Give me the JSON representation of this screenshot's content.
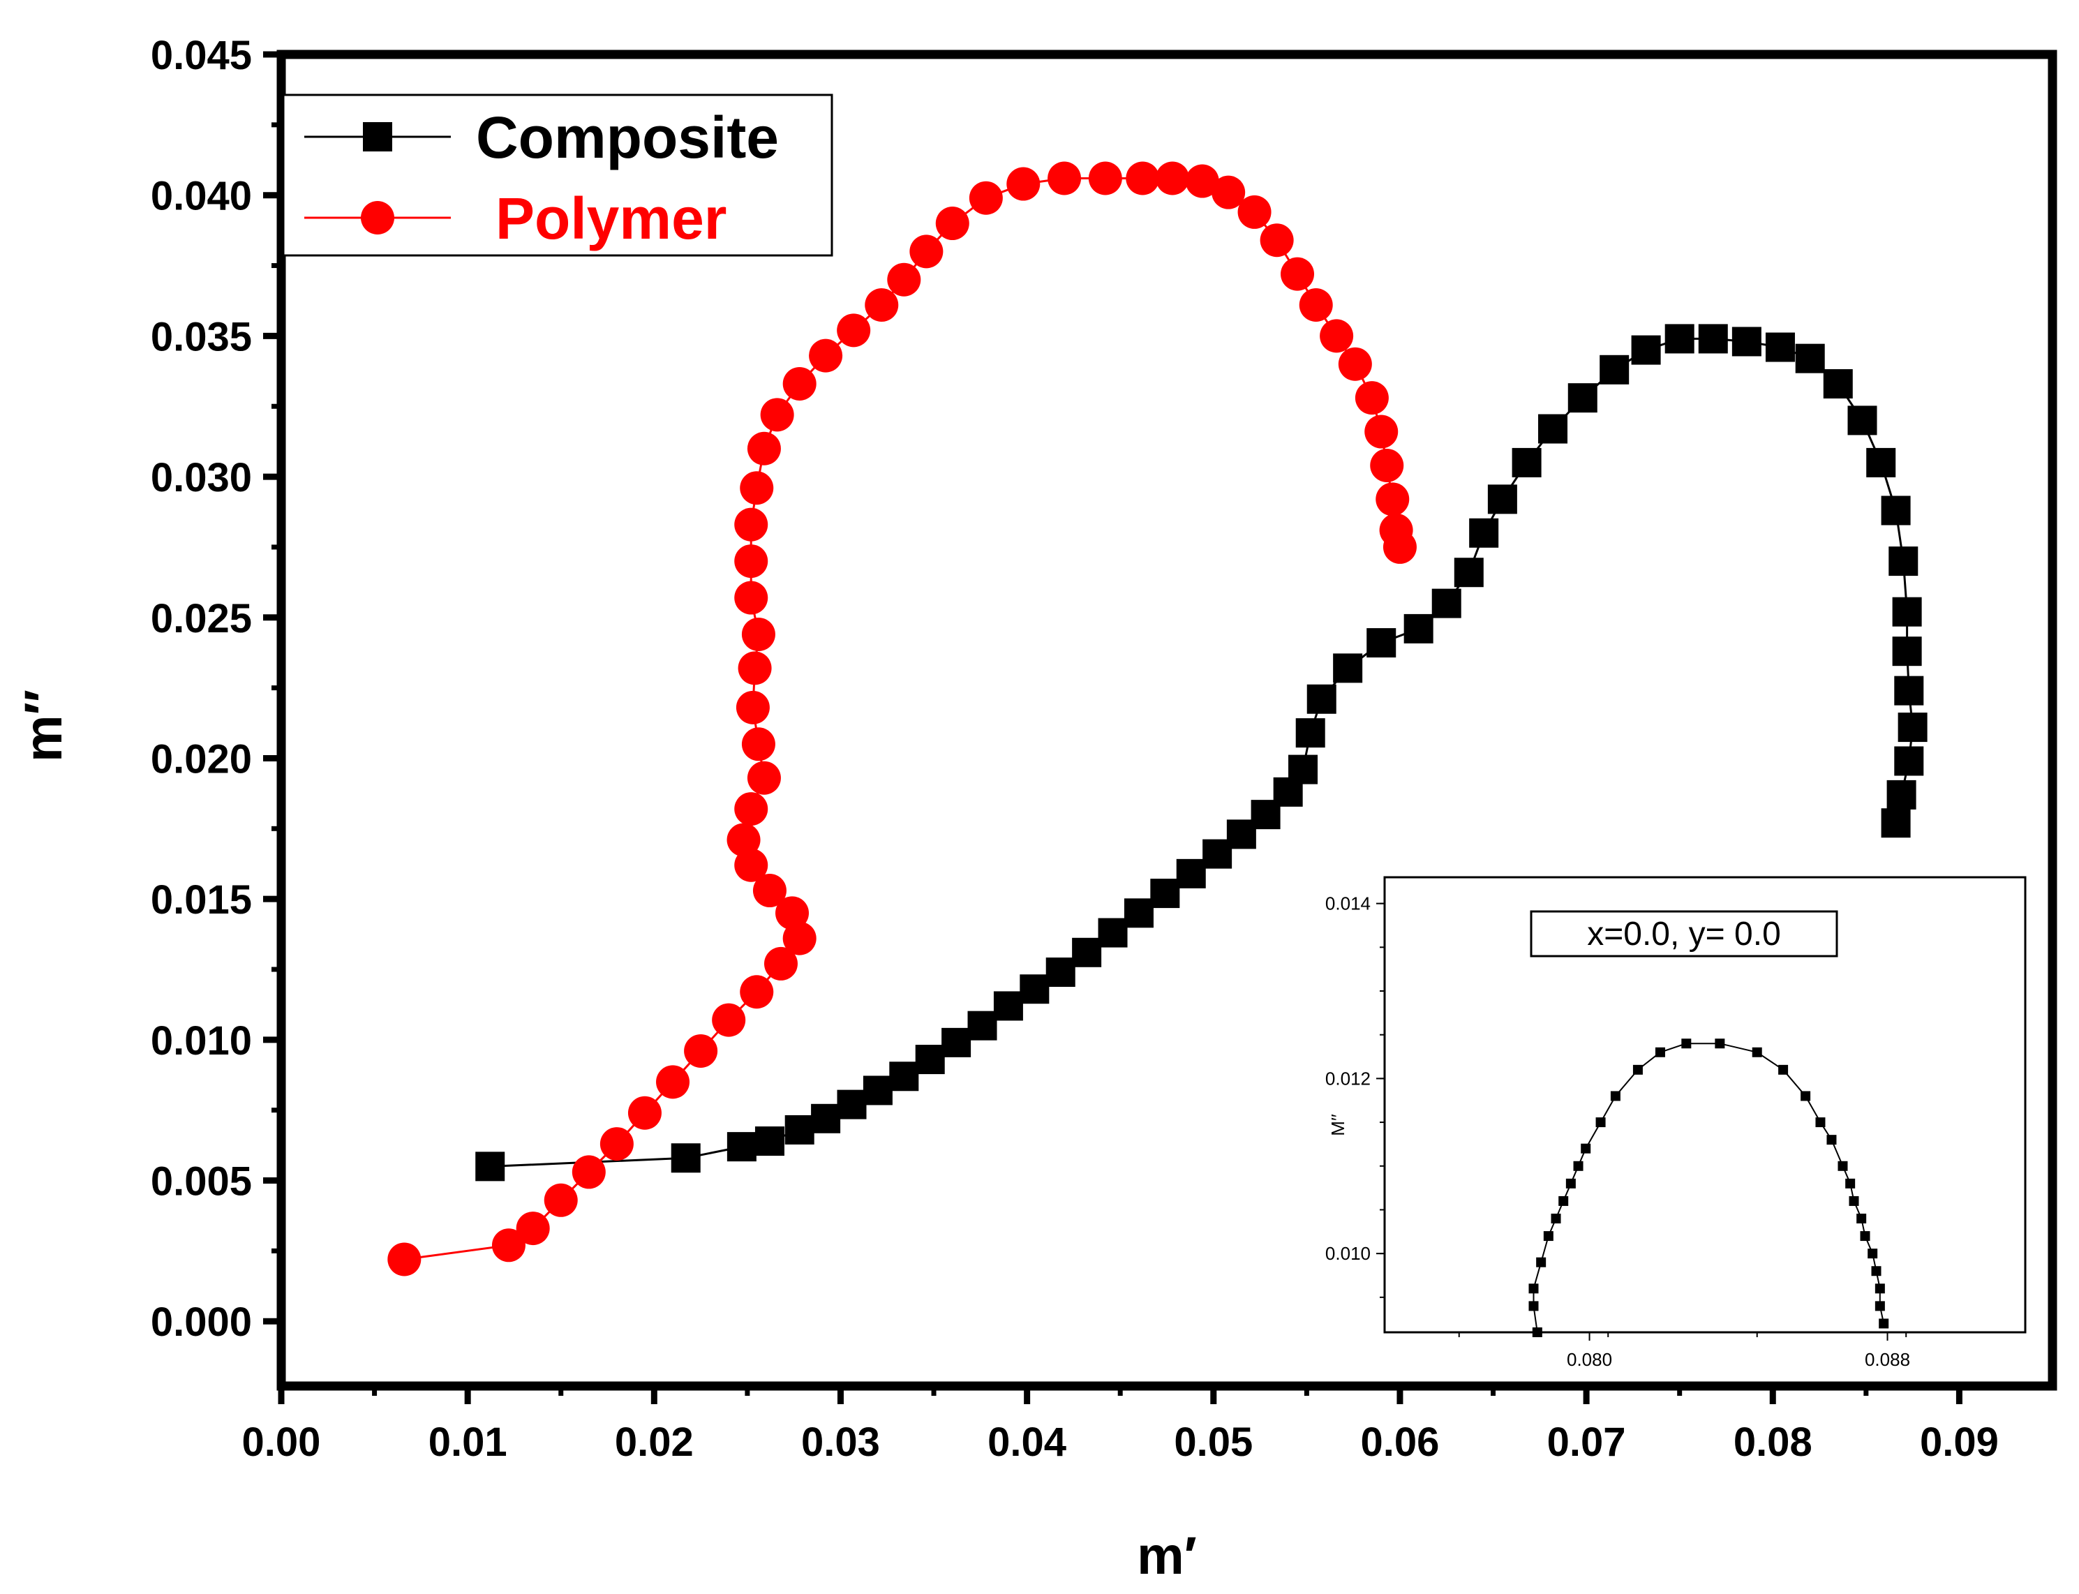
{
  "chart_data": [
    {
      "id": "main",
      "type": "line",
      "title": "",
      "xlabel": "m′",
      "ylabel": "m′′",
      "xlim": [
        0.0,
        0.095
      ],
      "ylim": [
        -0.0023,
        0.045
      ],
      "xticks": [
        0.0,
        0.01,
        0.02,
        0.03,
        0.04,
        0.05,
        0.06,
        0.07,
        0.08,
        0.09
      ],
      "xtick_labels": [
        "0.00",
        "0.01",
        "0.02",
        "0.03",
        "0.04",
        "0.05",
        "0.06",
        "0.07",
        "0.08",
        "0.09"
      ],
      "yticks": [
        0.0,
        0.005,
        0.01,
        0.015,
        0.02,
        0.025,
        0.03,
        0.035,
        0.04,
        0.045
      ],
      "ytick_labels": [
        "0.000",
        "0.005",
        "0.010",
        "0.015",
        "0.020",
        "0.025",
        "0.030",
        "0.035",
        "0.040",
        "0.045"
      ],
      "legend_position": "top-left",
      "series": [
        {
          "name": "Composite",
          "color": "#000000",
          "marker": "square",
          "points": [
            [
              0.0112,
              0.0055
            ],
            [
              0.0217,
              0.0058
            ],
            [
              0.0247,
              0.0062
            ],
            [
              0.0262,
              0.0064
            ],
            [
              0.0278,
              0.0068
            ],
            [
              0.0292,
              0.0072
            ],
            [
              0.0306,
              0.0077
            ],
            [
              0.032,
              0.0082
            ],
            [
              0.0334,
              0.0087
            ],
            [
              0.0348,
              0.0093
            ],
            [
              0.0362,
              0.0099
            ],
            [
              0.0376,
              0.0105
            ],
            [
              0.039,
              0.0112
            ],
            [
              0.0404,
              0.0118
            ],
            [
              0.0418,
              0.0124
            ],
            [
              0.0432,
              0.0131
            ],
            [
              0.0446,
              0.0138
            ],
            [
              0.046,
              0.0145
            ],
            [
              0.0474,
              0.0152
            ],
            [
              0.0488,
              0.0159
            ],
            [
              0.0502,
              0.0166
            ],
            [
              0.0515,
              0.0173
            ],
            [
              0.0528,
              0.018
            ],
            [
              0.054,
              0.0188
            ],
            [
              0.0548,
              0.0196
            ],
            [
              0.0552,
              0.0209
            ],
            [
              0.0558,
              0.0221
            ],
            [
              0.0572,
              0.0232
            ],
            [
              0.059,
              0.0241
            ],
            [
              0.061,
              0.0246
            ],
            [
              0.0625,
              0.0255
            ],
            [
              0.0637,
              0.0266
            ],
            [
              0.0645,
              0.028
            ],
            [
              0.0655,
              0.0292
            ],
            [
              0.0668,
              0.0305
            ],
            [
              0.0682,
              0.0317
            ],
            [
              0.0698,
              0.0328
            ],
            [
              0.0715,
              0.0338
            ],
            [
              0.0732,
              0.0345
            ],
            [
              0.075,
              0.0349
            ],
            [
              0.0768,
              0.0349
            ],
            [
              0.0786,
              0.0348
            ],
            [
              0.0804,
              0.0346
            ],
            [
              0.082,
              0.0342
            ],
            [
              0.0835,
              0.0333
            ],
            [
              0.0848,
              0.032
            ],
            [
              0.0858,
              0.0305
            ],
            [
              0.0866,
              0.0288
            ],
            [
              0.087,
              0.027
            ],
            [
              0.0872,
              0.0252
            ],
            [
              0.0872,
              0.0238
            ],
            [
              0.0873,
              0.0224
            ],
            [
              0.0875,
              0.0211
            ],
            [
              0.0873,
              0.0199
            ],
            [
              0.0869,
              0.0187
            ],
            [
              0.0866,
              0.0177
            ]
          ]
        },
        {
          "name": "Polymer",
          "color": "#ff0000",
          "marker": "circle",
          "points": [
            [
              0.0066,
              0.0022
            ],
            [
              0.0122,
              0.0027
            ],
            [
              0.0135,
              0.0033
            ],
            [
              0.015,
              0.0043
            ],
            [
              0.0165,
              0.0053
            ],
            [
              0.018,
              0.0063
            ],
            [
              0.0195,
              0.0074
            ],
            [
              0.021,
              0.0085
            ],
            [
              0.0225,
              0.0096
            ],
            [
              0.024,
              0.0107
            ],
            [
              0.0255,
              0.0117
            ],
            [
              0.0268,
              0.0127
            ],
            [
              0.0278,
              0.0136
            ],
            [
              0.0274,
              0.0145
            ],
            [
              0.0262,
              0.0153
            ],
            [
              0.0252,
              0.0162
            ],
            [
              0.0248,
              0.0171
            ],
            [
              0.0252,
              0.0182
            ],
            [
              0.0259,
              0.0193
            ],
            [
              0.0256,
              0.0205
            ],
            [
              0.0253,
              0.0218
            ],
            [
              0.0254,
              0.0232
            ],
            [
              0.0256,
              0.0244
            ],
            [
              0.0252,
              0.0257
            ],
            [
              0.0252,
              0.027
            ],
            [
              0.0252,
              0.0283
            ],
            [
              0.0255,
              0.0296
            ],
            [
              0.0259,
              0.031
            ],
            [
              0.0266,
              0.0322
            ],
            [
              0.0278,
              0.0333
            ],
            [
              0.0292,
              0.0343
            ],
            [
              0.0307,
              0.0352
            ],
            [
              0.0322,
              0.0361
            ],
            [
              0.0334,
              0.037
            ],
            [
              0.0346,
              0.038
            ],
            [
              0.036,
              0.039
            ],
            [
              0.0378,
              0.0399
            ],
            [
              0.0398,
              0.0404
            ],
            [
              0.042,
              0.0406
            ],
            [
              0.0442,
              0.0406
            ],
            [
              0.0462,
              0.0406
            ],
            [
              0.0478,
              0.0406
            ],
            [
              0.0494,
              0.0405
            ],
            [
              0.0508,
              0.0401
            ],
            [
              0.0522,
              0.0394
            ],
            [
              0.0534,
              0.0384
            ],
            [
              0.0545,
              0.0372
            ],
            [
              0.0555,
              0.0361
            ],
            [
              0.0566,
              0.035
            ],
            [
              0.0576,
              0.034
            ],
            [
              0.0585,
              0.0328
            ],
            [
              0.059,
              0.0316
            ],
            [
              0.0593,
              0.0304
            ],
            [
              0.0596,
              0.0292
            ],
            [
              0.0598,
              0.0281
            ],
            [
              0.06,
              0.0275
            ]
          ]
        }
      ]
    },
    {
      "id": "inset",
      "type": "line",
      "title": "",
      "annotation": "x=0.0, y= 0.0",
      "xlabel": "",
      "ylabel": "M′′",
      "xlim": [
        0.0745,
        0.0917
      ],
      "ylim": [
        0.0091,
        0.0143
      ],
      "xticks": [
        0.08,
        0.088
      ],
      "xtick_labels": [
        "0.080",
        "0.088"
      ],
      "yticks": [
        0.01,
        0.012,
        0.014
      ],
      "ytick_labels": [
        "0.010",
        "0.012",
        "0.014"
      ],
      "series": [
        {
          "name": "Composite",
          "color": "#000000",
          "marker": "square",
          "points": [
            [
              0.0786,
              0.0091
            ],
            [
              0.0785,
              0.0094
            ],
            [
              0.0785,
              0.0096
            ],
            [
              0.0787,
              0.0099
            ],
            [
              0.0789,
              0.0102
            ],
            [
              0.0791,
              0.0104
            ],
            [
              0.0793,
              0.0106
            ],
            [
              0.0795,
              0.0108
            ],
            [
              0.0797,
              0.011
            ],
            [
              0.0799,
              0.0112
            ],
            [
              0.0803,
              0.0115
            ],
            [
              0.0807,
              0.0118
            ],
            [
              0.0813,
              0.0121
            ],
            [
              0.0819,
              0.0123
            ],
            [
              0.0826,
              0.0124
            ],
            [
              0.0835,
              0.0124
            ],
            [
              0.0845,
              0.0123
            ],
            [
              0.0852,
              0.0121
            ],
            [
              0.0858,
              0.0118
            ],
            [
              0.0862,
              0.0115
            ],
            [
              0.0865,
              0.0113
            ],
            [
              0.0868,
              0.011
            ],
            [
              0.087,
              0.0108
            ],
            [
              0.0871,
              0.0106
            ],
            [
              0.0873,
              0.0104
            ],
            [
              0.0874,
              0.0102
            ],
            [
              0.0876,
              0.01
            ],
            [
              0.0877,
              0.0098
            ],
            [
              0.0878,
              0.0096
            ],
            [
              0.0878,
              0.0094
            ],
            [
              0.0879,
              0.0092
            ]
          ]
        }
      ]
    }
  ],
  "legend": {
    "items": [
      {
        "label": "Composite",
        "color": "#000000",
        "marker": "square"
      },
      {
        "label": "Polymer",
        "color": "#ff0000",
        "marker": "circle"
      }
    ]
  }
}
